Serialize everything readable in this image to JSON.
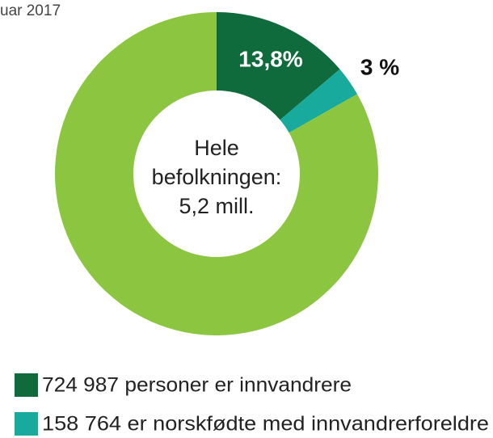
{
  "chart_data": {
    "type": "donut",
    "title": "uar 2017",
    "categories": [
      "724 987 personer er innvandrere",
      "158 764 er norskfødte med innvandrerforeldre",
      null
    ],
    "values": [
      13.8,
      3,
      83.2
    ],
    "value_labels": [
      "13,8%",
      "3 %",
      null
    ],
    "colors": [
      "#0f6b3b",
      "#18aa9c",
      "#8cc641"
    ],
    "center_text": [
      "Hele",
      "befolkningen:",
      "5,2 mill."
    ]
  }
}
